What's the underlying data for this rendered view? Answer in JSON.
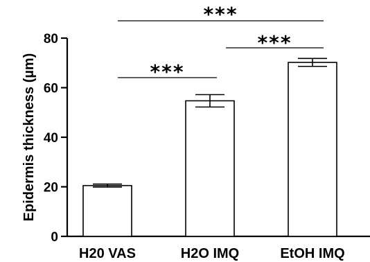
{
  "chart_data": {
    "type": "bar",
    "title": "",
    "xlabel": "",
    "ylabel": "Epidermis thickness (µm)",
    "categories": [
      "H20 VAS",
      "H2O IMQ",
      "EtOH IMQ"
    ],
    "values": [
      20.5,
      54.7,
      70.2
    ],
    "errors": [
      0.6,
      2.5,
      1.6
    ],
    "ylim": [
      0,
      80
    ],
    "yticks": [
      0,
      20,
      40,
      60,
      80
    ],
    "ytick_labels": [
      "0",
      "20",
      "40",
      "60",
      "80"
    ],
    "bar_fill": "#ffffff",
    "bar_stroke": "#000000",
    "significance": [
      {
        "label": "***",
        "from": 0,
        "to": 1
      },
      {
        "label": "***",
        "from": 1,
        "to": 2
      },
      {
        "label": "***",
        "from": 0,
        "to": 2
      }
    ]
  }
}
